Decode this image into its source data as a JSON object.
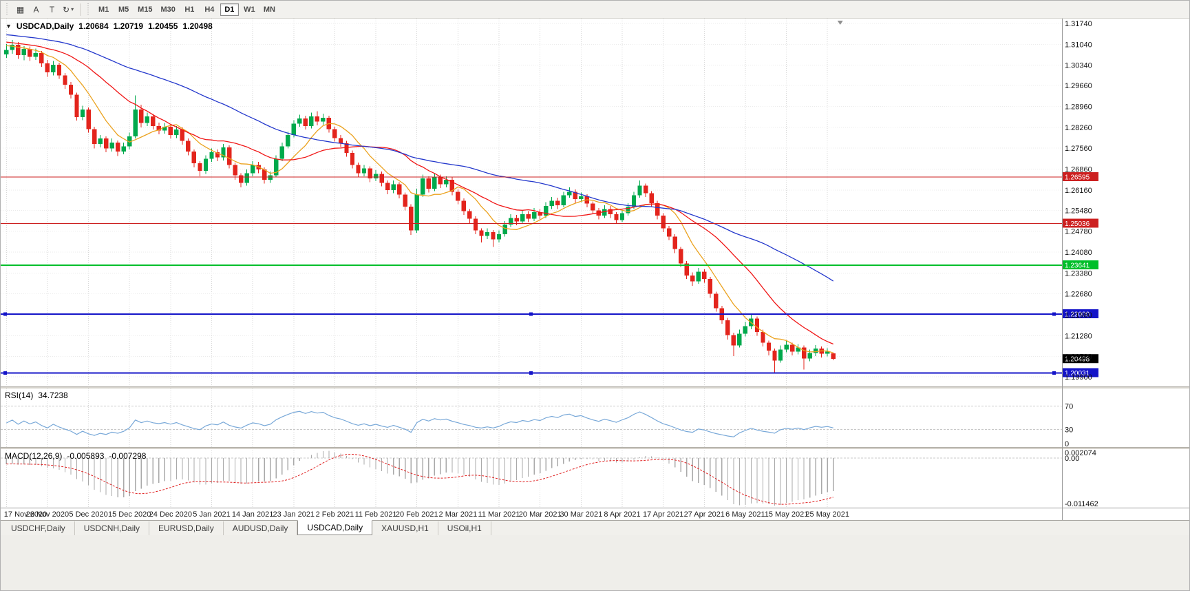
{
  "toolbar": {
    "icon_buttons": [
      {
        "name": "tile-windows-icon",
        "glyph": "▦"
      },
      {
        "name": "text-a-button",
        "glyph": "A"
      },
      {
        "name": "text-t-button",
        "glyph": "T"
      },
      {
        "name": "refresh-dropdown-button",
        "glyph": "↻",
        "caret": "▾"
      }
    ],
    "timeframes": [
      "M1",
      "M5",
      "M15",
      "M30",
      "H1",
      "H4",
      "D1",
      "W1",
      "MN"
    ],
    "selected_timeframe": "D1"
  },
  "chart": {
    "one_click_arrow": "▼",
    "symbol": "USDCAD,Daily",
    "ohlc": {
      "open": "1.20684",
      "high": "1.20719",
      "low": "1.20455",
      "close": "1.20498"
    }
  },
  "rsi_panel": {
    "label": "RSI(14)",
    "value": "34.7238"
  },
  "macd_panel": {
    "label": "MACD(12,26,9)",
    "value_main": "-0.005893",
    "value_signal": "-0.007298",
    "axis": [
      "0.002074",
      "0.00",
      "-0.011462"
    ]
  },
  "tabs": [
    {
      "label": "USDCHF,Daily",
      "active": false
    },
    {
      "label": "USDCNH,Daily",
      "active": false
    },
    {
      "label": "EURUSD,Daily",
      "active": false
    },
    {
      "label": "AUDUSD,Daily",
      "active": false
    },
    {
      "label": "USDCAD,Daily",
      "active": true
    },
    {
      "label": "XAUUSD,H1",
      "active": false
    },
    {
      "label": "USOil,H1",
      "active": false
    }
  ],
  "chart_data": {
    "type": "candlestick",
    "symbol": "USDCAD",
    "timeframe": "Daily",
    "bars_per_label": 7,
    "x_labels": [
      "17 Nov 2020",
      "26 Nov 2020",
      "5 Dec 2020",
      "15 Dec 2020",
      "24 Dec 2020",
      "5 Jan 2021",
      "14 Jan 2021",
      "23 Jan 2021",
      "2 Feb 2021",
      "11 Feb 2021",
      "20 Feb 2021",
      "2 Mar 2021",
      "11 Mar 2021",
      "20 Mar 2021",
      "30 Mar 2021",
      "8 Apr 2021",
      "17 Apr 2021",
      "27 Apr 2021",
      "6 May 2021",
      "15 May 2021",
      "25 May 2021"
    ],
    "price_axis_labels": [
      "1.31740",
      "1.31040",
      "1.30340",
      "1.29660",
      "1.28960",
      "1.28260",
      "1.27560",
      "1.26860",
      "1.26160",
      "1.25480",
      "1.24780",
      "1.24080",
      "1.23380",
      "1.22680",
      "1.21980",
      "1.21280",
      "1.20580",
      "1.19900"
    ],
    "price_range": {
      "top": 1.319,
      "bottom": 1.1958
    },
    "up_color": "#00a94c",
    "down_color": "#e3241c",
    "candles": [
      [
        1.307,
        1.3105,
        1.3058,
        1.3085
      ],
      [
        1.3085,
        1.3118,
        1.3072,
        1.3102
      ],
      [
        1.3102,
        1.3112,
        1.3055,
        1.3068
      ],
      [
        1.3068,
        1.3098,
        1.305,
        1.3088
      ],
      [
        1.3088,
        1.3096,
        1.3048,
        1.3062
      ],
      [
        1.3062,
        1.309,
        1.3052,
        1.3075
      ],
      [
        1.3075,
        1.3082,
        1.3028,
        1.304
      ],
      [
        1.304,
        1.3052,
        1.2995,
        1.301
      ],
      [
        1.301,
        1.3048,
        1.3,
        1.3035
      ],
      [
        1.3035,
        1.3042,
        1.2988,
        1.3
      ],
      [
        1.3,
        1.3008,
        1.2955,
        1.2968
      ],
      [
        1.2968,
        1.2978,
        1.2922,
        1.2935
      ],
      [
        1.2935,
        1.2942,
        1.2848,
        1.286
      ],
      [
        1.286,
        1.2898,
        1.285,
        1.2885
      ],
      [
        1.2885,
        1.2892,
        1.2808,
        1.282
      ],
      [
        1.282,
        1.2828,
        1.2755,
        1.277
      ],
      [
        1.277,
        1.28,
        1.2758,
        1.2788
      ],
      [
        1.2788,
        1.2795,
        1.2742,
        1.2755
      ],
      [
        1.2755,
        1.2788,
        1.2745,
        1.2775
      ],
      [
        1.2775,
        1.2782,
        1.273,
        1.2745
      ],
      [
        1.2745,
        1.2775,
        1.2735,
        1.2762
      ],
      [
        1.2762,
        1.2808,
        1.2752,
        1.2795
      ],
      [
        1.2795,
        1.2933,
        1.2788,
        1.2885
      ],
      [
        1.2885,
        1.2902,
        1.2825,
        1.284
      ],
      [
        1.284,
        1.2875,
        1.283,
        1.2862
      ],
      [
        1.2862,
        1.287,
        1.2818,
        1.283
      ],
      [
        1.283,
        1.2842,
        1.2802,
        1.2815
      ],
      [
        1.2815,
        1.284,
        1.2805,
        1.2828
      ],
      [
        1.2828,
        1.2835,
        1.2788,
        1.28
      ],
      [
        1.28,
        1.283,
        1.279,
        1.2818
      ],
      [
        1.2818,
        1.2825,
        1.2768,
        1.278
      ],
      [
        1.278,
        1.2788,
        1.2732,
        1.2745
      ],
      [
        1.2745,
        1.2752,
        1.2692,
        1.2705
      ],
      [
        1.2705,
        1.2712,
        1.2662,
        1.268
      ],
      [
        1.268,
        1.2732,
        1.267,
        1.272
      ],
      [
        1.272,
        1.2755,
        1.271,
        1.2742
      ],
      [
        1.2742,
        1.2752,
        1.2712,
        1.2725
      ],
      [
        1.2725,
        1.277,
        1.2715,
        1.2758
      ],
      [
        1.2758,
        1.2765,
        1.2688,
        1.27
      ],
      [
        1.27,
        1.2708,
        1.265,
        1.2665
      ],
      [
        1.2665,
        1.2672,
        1.2625,
        1.264
      ],
      [
        1.264,
        1.2685,
        1.263,
        1.2672
      ],
      [
        1.2672,
        1.2712,
        1.2662,
        1.27
      ],
      [
        1.27,
        1.271,
        1.2672,
        1.2685
      ],
      [
        1.2685,
        1.2692,
        1.2638,
        1.265
      ],
      [
        1.265,
        1.2678,
        1.264,
        1.2665
      ],
      [
        1.2665,
        1.2732,
        1.2658,
        1.272
      ],
      [
        1.272,
        1.2775,
        1.2712,
        1.2762
      ],
      [
        1.2762,
        1.2812,
        1.2755,
        1.28
      ],
      [
        1.28,
        1.285,
        1.2792,
        1.2838
      ],
      [
        1.2838,
        1.2868,
        1.2828,
        1.2855
      ],
      [
        1.2855,
        1.2865,
        1.2818,
        1.283
      ],
      [
        1.283,
        1.2875,
        1.2822,
        1.2862
      ],
      [
        1.2862,
        1.288,
        1.2832,
        1.2845
      ],
      [
        1.2845,
        1.2872,
        1.2835,
        1.2858
      ],
      [
        1.2858,
        1.2865,
        1.2808,
        1.282
      ],
      [
        1.282,
        1.2828,
        1.2778,
        1.279
      ],
      [
        1.279,
        1.28,
        1.276,
        1.2772
      ],
      [
        1.2772,
        1.278,
        1.2728,
        1.274
      ],
      [
        1.274,
        1.2748,
        1.2688,
        1.27
      ],
      [
        1.27,
        1.2708,
        1.266,
        1.2672
      ],
      [
        1.2672,
        1.27,
        1.2662,
        1.2688
      ],
      [
        1.2688,
        1.2695,
        1.2642,
        1.2655
      ],
      [
        1.2655,
        1.2682,
        1.2645,
        1.267
      ],
      [
        1.267,
        1.2678,
        1.2628,
        1.264
      ],
      [
        1.264,
        1.2648,
        1.2602,
        1.2615
      ],
      [
        1.2615,
        1.2648,
        1.2605,
        1.2635
      ],
      [
        1.2635,
        1.2642,
        1.2588,
        1.26
      ],
      [
        1.26,
        1.2608,
        1.2548,
        1.256
      ],
      [
        1.256,
        1.2568,
        1.2466,
        1.248
      ],
      [
        1.248,
        1.262,
        1.2472,
        1.26
      ],
      [
        1.26,
        1.2668,
        1.2592,
        1.2655
      ],
      [
        1.2655,
        1.2662,
        1.2608,
        1.262
      ],
      [
        1.262,
        1.2672,
        1.2612,
        1.266
      ],
      [
        1.266,
        1.2668,
        1.2622,
        1.2635
      ],
      [
        1.2635,
        1.2662,
        1.2625,
        1.265
      ],
      [
        1.265,
        1.2658,
        1.2598,
        1.261
      ],
      [
        1.261,
        1.2618,
        1.2568,
        1.258
      ],
      [
        1.258,
        1.2588,
        1.2532,
        1.2545
      ],
      [
        1.2545,
        1.2552,
        1.2505,
        1.252
      ],
      [
        1.252,
        1.2528,
        1.2468,
        1.248
      ],
      [
        1.248,
        1.2488,
        1.244,
        1.2462
      ],
      [
        1.2462,
        1.2488,
        1.2452,
        1.2475
      ],
      [
        1.2475,
        1.2482,
        1.2425,
        1.245
      ],
      [
        1.245,
        1.248,
        1.244,
        1.2468
      ],
      [
        1.2468,
        1.2512,
        1.246,
        1.25
      ],
      [
        1.25,
        1.2535,
        1.2492,
        1.2522
      ],
      [
        1.2522,
        1.2532,
        1.2498,
        1.251
      ],
      [
        1.251,
        1.2548,
        1.2502,
        1.2535
      ],
      [
        1.2535,
        1.2545,
        1.2508,
        1.252
      ],
      [
        1.252,
        1.2555,
        1.2512,
        1.2542
      ],
      [
        1.2542,
        1.2552,
        1.2518,
        1.253
      ],
      [
        1.253,
        1.2575,
        1.2522,
        1.2562
      ],
      [
        1.2562,
        1.2592,
        1.2552,
        1.258
      ],
      [
        1.258,
        1.259,
        1.2552,
        1.2565
      ],
      [
        1.2565,
        1.261,
        1.2558,
        1.2598
      ],
      [
        1.2598,
        1.2625,
        1.259,
        1.261
      ],
      [
        1.261,
        1.2618,
        1.2572,
        1.2585
      ],
      [
        1.2585,
        1.2608,
        1.2575,
        1.2595
      ],
      [
        1.2595,
        1.2602,
        1.2558,
        1.257
      ],
      [
        1.257,
        1.2578,
        1.2535,
        1.2548
      ],
      [
        1.2548,
        1.2555,
        1.2518,
        1.253
      ],
      [
        1.253,
        1.2565,
        1.2522,
        1.2552
      ],
      [
        1.2552,
        1.2562,
        1.2522,
        1.2535
      ],
      [
        1.2535,
        1.2542,
        1.2502,
        1.2515
      ],
      [
        1.2515,
        1.255,
        1.2508,
        1.2538
      ],
      [
        1.2538,
        1.2572,
        1.253,
        1.256
      ],
      [
        1.256,
        1.261,
        1.2552,
        1.2598
      ],
      [
        1.2598,
        1.2648,
        1.259,
        1.263
      ],
      [
        1.263,
        1.2638,
        1.2592,
        1.2605
      ],
      [
        1.2605,
        1.2612,
        1.256,
        1.2572
      ],
      [
        1.2572,
        1.258,
        1.2518,
        1.253
      ],
      [
        1.253,
        1.2538,
        1.2475,
        1.2488
      ],
      [
        1.2488,
        1.2495,
        1.2448,
        1.246
      ],
      [
        1.246,
        1.2468,
        1.2405,
        1.2418
      ],
      [
        1.2418,
        1.2425,
        1.2358,
        1.237
      ],
      [
        1.237,
        1.2378,
        1.2318,
        1.233
      ],
      [
        1.233,
        1.234,
        1.2295,
        1.231
      ],
      [
        1.231,
        1.2355,
        1.2302,
        1.2342
      ],
      [
        1.2342,
        1.235,
        1.2305,
        1.2318
      ],
      [
        1.2318,
        1.2325,
        1.2255,
        1.2268
      ],
      [
        1.2268,
        1.2275,
        1.2208,
        1.222
      ],
      [
        1.222,
        1.2228,
        1.2168,
        1.218
      ],
      [
        1.218,
        1.2188,
        1.2115,
        1.213
      ],
      [
        1.213,
        1.2138,
        1.206,
        1.2095
      ],
      [
        1.2095,
        1.2148,
        1.2088,
        1.2135
      ],
      [
        1.2135,
        1.2175,
        1.2125,
        1.216
      ],
      [
        1.216,
        1.2202,
        1.215,
        1.2185
      ],
      [
        1.2185,
        1.2192,
        1.2128,
        1.214
      ],
      [
        1.214,
        1.2148,
        1.2092,
        1.2105
      ],
      [
        1.2105,
        1.2112,
        1.2062,
        1.2078
      ],
      [
        1.2078,
        1.2085,
        1.2005,
        1.2045
      ],
      [
        1.2045,
        1.2095,
        1.2038,
        1.2082
      ],
      [
        1.2082,
        1.211,
        1.2072,
        1.2098
      ],
      [
        1.2098,
        1.2105,
        1.2062,
        1.2075
      ],
      [
        1.2075,
        1.21,
        1.2065,
        1.2088
      ],
      [
        1.2088,
        1.2095,
        1.2015,
        1.2052
      ],
      [
        1.2052,
        1.2082,
        1.2042,
        1.207
      ],
      [
        1.207,
        1.2096,
        1.206,
        1.2085
      ],
      [
        1.2085,
        1.2092,
        1.2055,
        1.2068
      ],
      [
        1.2068,
        1.2086,
        1.2058,
        1.2075
      ],
      [
        1.20684,
        1.20719,
        1.20455,
        1.20498
      ]
    ],
    "moving_averages": [
      {
        "period": 8,
        "color": "#eba21e"
      },
      {
        "period": 20,
        "color": "#f01616"
      },
      {
        "period": 45,
        "color": "#2438cc"
      }
    ],
    "hlines": [
      {
        "value": 1.26595,
        "label": "1.26595",
        "color": "#cc1f1f",
        "width": 1.2,
        "handles": false
      },
      {
        "value": 1.25036,
        "label": "1.25036",
        "color": "#cc1f1f",
        "width": 1.2,
        "handles": false
      },
      {
        "value": 1.23641,
        "label": "1.23641",
        "color": "#00bf2a",
        "width": 1.6,
        "handles": false
      },
      {
        "value": 1.22,
        "label": "1.22000",
        "color": "#1414c8",
        "width": 1.8,
        "handles": true
      },
      {
        "value": 1.20031,
        "label": "1.20031",
        "color": "#1414c8",
        "width": 1.8,
        "handles": true
      }
    ],
    "current_price": {
      "value": 1.20498,
      "label": "1.20498",
      "badge_color": "#000000"
    },
    "rsi": {
      "period": 14,
      "color": "#78a8d8",
      "levels": [
        70,
        30,
        0
      ]
    },
    "macd": {
      "fast": 12,
      "slow": 26,
      "signal": 9,
      "hist_color": "#a9a9a9",
      "signal_color": "#e02020",
      "range": {
        "top": 0.002074,
        "bottom": -0.011462
      }
    }
  }
}
